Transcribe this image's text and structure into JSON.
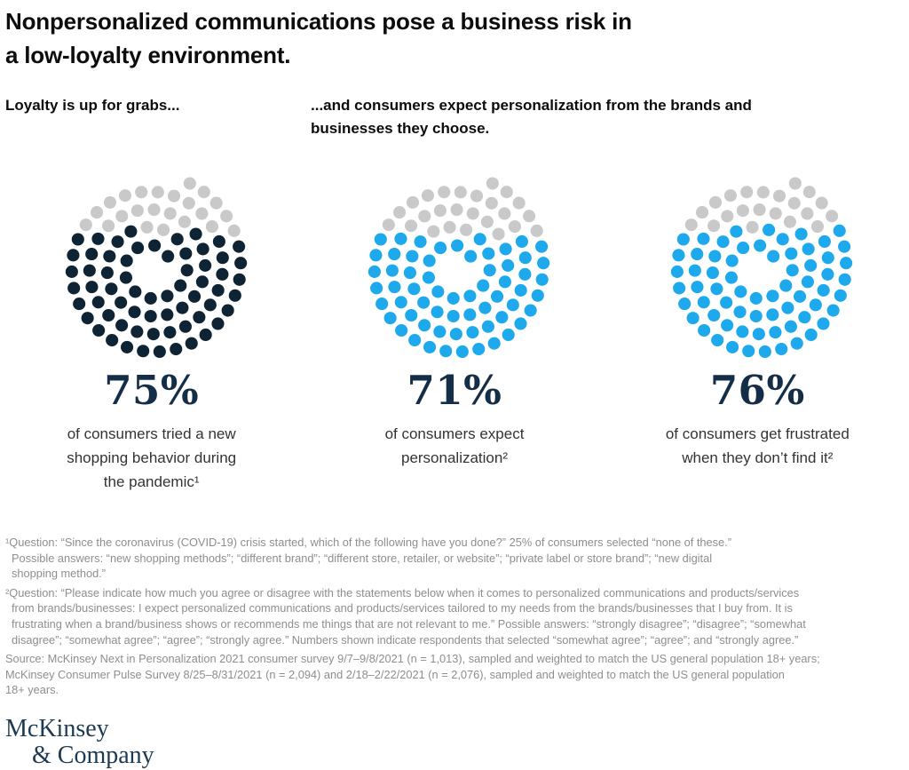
{
  "page": {
    "title_lines": [
      "Nonpersonalized communications pose a business risk in",
      "a low-loyalty environment."
    ]
  },
  "headings": {
    "left": "Loyalty is up for grabs...",
    "right_lines": [
      "...and consumers expect personalization from the brands and",
      "businesses they choose."
    ]
  },
  "chart_data": {
    "type": "dot-donut-set",
    "unit": "percent of consumers",
    "remainder_color": "#c9c9c9",
    "legend_position": "none",
    "charts": [
      {
        "value": 75,
        "display": "75%",
        "dot_color": "#0e2334",
        "caption": "of consumers tried a new shopping behavior during the pandemic¹",
        "caption_lines": [
          "of consumers tried a new",
          "shopping behavior during",
          "the pandemic¹"
        ]
      },
      {
        "value": 71,
        "display": "71%",
        "dot_color": "#1ea9ec",
        "caption": "of consumers expect personalization²",
        "caption_lines": [
          "of consumers expect",
          "personalization²"
        ]
      },
      {
        "value": 76,
        "display": "76%",
        "dot_color": "#1ea9ec",
        "caption": "of consumers get frustrated when they don’t find it²",
        "caption_lines": [
          "of consumers get frustrated",
          "when they don’t find it²"
        ]
      }
    ]
  },
  "footnotes": [
    {
      "lines": [
        "¹Question: “Since the coronavirus (COVID-19) crisis started, which of the following have you done?” 25% of consumers selected “none of these.”",
        "Possible answers: “new shopping methods”; “different brand”; “different store, retailer, or website”; “private label or store brand”; “new digital",
        "shopping method.”"
      ]
    },
    {
      "lines": [
        "²Question: “Please indicate how much you agree or disagree with the statements below when it comes to personalized communications and products/services",
        "from brands/businesses: I expect personalized communications and products/services tailored to my needs from the brands/businesses that I buy from. It is",
        "frustrating when a brand/business shows or recommends me things that are not relevant to me.” Possible answers: “strongly disagree”; “disagree”; “somewhat",
        "disagree”; “somewhat agree”; “agree”; “strongly agree.” Numbers shown indicate respondents that selected “somewhat agree”; “agree”; and “strongly agree.”"
      ]
    }
  ],
  "source_lines": [
    "Source: McKinsey Next in Personalization 2021 consumer survey 9/7–9/8/2021 (n = 1,013), sampled and weighted to match the US general population 18+ years;",
    "McKinsey Consumer Pulse Survey 8/25–8/31/2021 (n = 2,094) and 2/18–2/22/2021 (n = 2,076), sampled and weighted to match the US general population",
    "18+ years."
  ],
  "logo": {
    "line1": "McKinsey",
    "line2": "& Company"
  }
}
